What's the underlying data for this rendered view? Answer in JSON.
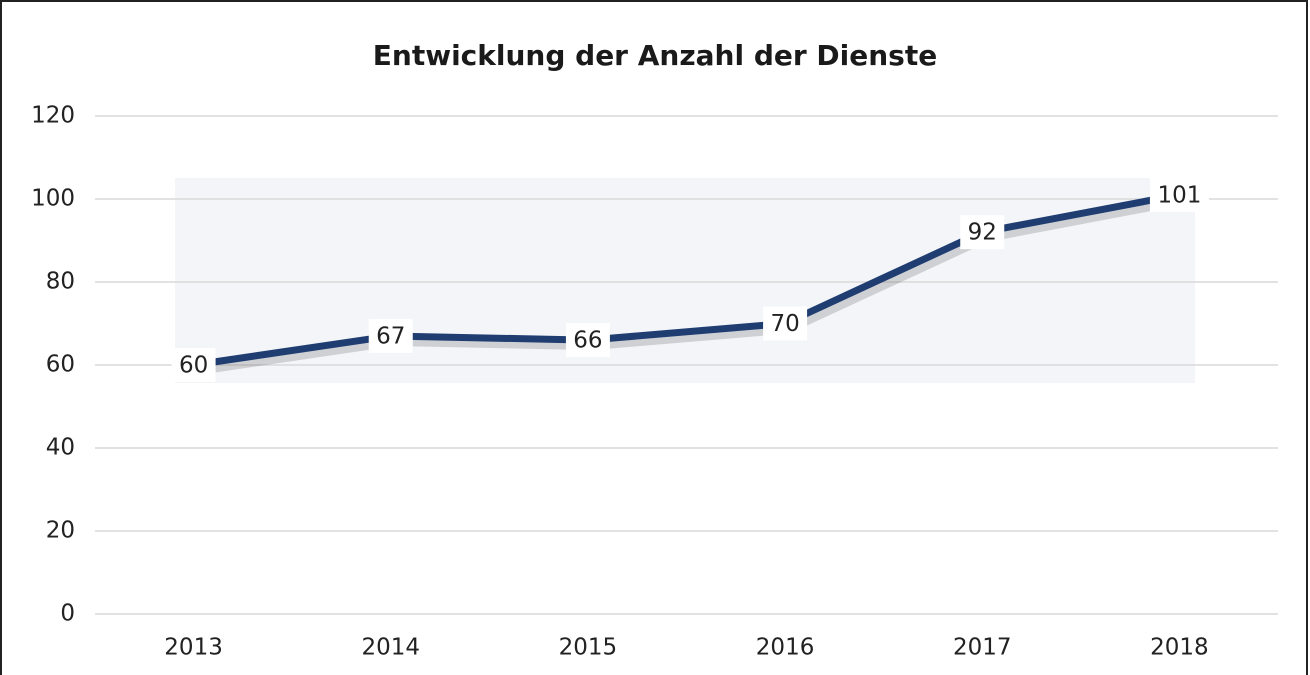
{
  "chart_data": {
    "type": "line",
    "title": "Entwicklung der Anzahl der Dienste",
    "categories": [
      "2013",
      "2014",
      "2015",
      "2016",
      "2017",
      "2018"
    ],
    "values": [
      60,
      67,
      66,
      70,
      92,
      101
    ],
    "color": "#1f3d70",
    "ylim": [
      0,
      120
    ],
    "yticks": [
      0,
      20,
      40,
      60,
      80,
      100,
      120
    ],
    "grid": true
  }
}
